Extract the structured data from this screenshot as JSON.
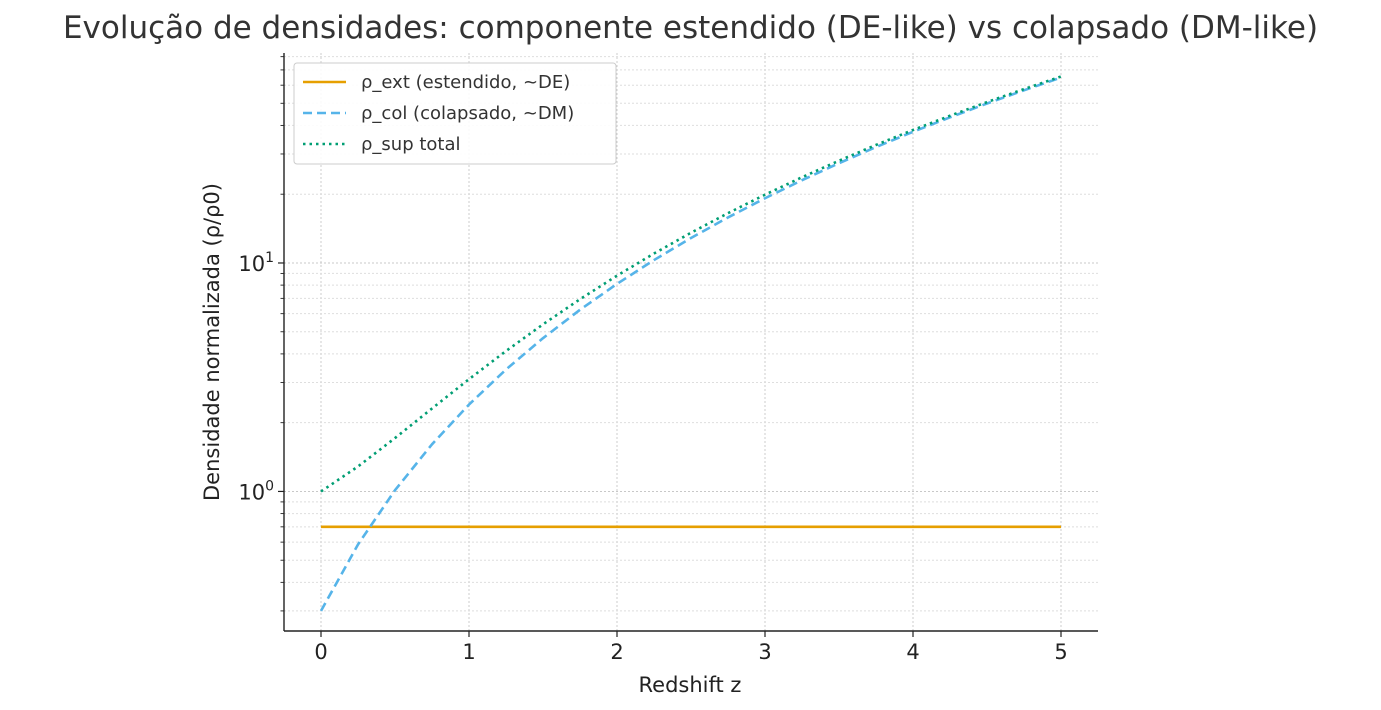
{
  "chart_data": {
    "type": "line",
    "title": "Evolução de densidades: componente estendido (DE-like) vs colapsado (DM-like)",
    "xlabel": "Redshift z",
    "ylabel": "Densidade normalizada (ρ/ρ0)",
    "xlim": [
      -0.25,
      5.25
    ],
    "ylim": [
      0.245,
      83
    ],
    "yscale": "log",
    "grid": true,
    "legend_position": "top-left",
    "x_ticks": [
      "0",
      "1",
      "2",
      "3",
      "4",
      "5"
    ],
    "y_ticks": [
      {
        "base": "10",
        "exp": "0",
        "value": 1
      },
      {
        "base": "10",
        "exp": "1",
        "value": 10
      }
    ],
    "x": [
      0,
      0.25,
      0.5,
      0.75,
      1,
      1.25,
      1.5,
      1.75,
      2,
      2.25,
      2.5,
      2.75,
      3,
      3.25,
      3.5,
      3.75,
      4,
      4.25,
      4.5,
      4.75,
      5
    ],
    "series": [
      {
        "name": "ρ_ext (estendido, ~DE)",
        "color": "#E69F00",
        "dash": "solid",
        "values": [
          0.7,
          0.7,
          0.7,
          0.7,
          0.7,
          0.7,
          0.7,
          0.7,
          0.7,
          0.7,
          0.7,
          0.7,
          0.7,
          0.7,
          0.7,
          0.7,
          0.7,
          0.7,
          0.7,
          0.7,
          0.7
        ]
      },
      {
        "name": "ρ_col (colapsado, ~DM)",
        "color": "#56B4E9",
        "dash": "dashed",
        "values": [
          0.3,
          0.586,
          1.0125,
          1.608,
          2.4,
          3.417,
          4.6875,
          6.239,
          8.1,
          10.298,
          12.863,
          15.822,
          19.2,
          23.027,
          27.338,
          32.16,
          37.5,
          43.398,
          49.894,
          56.991,
          64.8
        ]
      },
      {
        "name": "ρ_sup total",
        "color": "#009E73",
        "dash": "dotted",
        "values": [
          1.0,
          1.286,
          1.7125,
          2.308,
          3.1,
          4.117,
          5.3875,
          6.939,
          8.8,
          10.998,
          13.563,
          16.522,
          19.9,
          23.727,
          28.038,
          32.86,
          38.2,
          44.098,
          50.594,
          57.691,
          65.5
        ]
      }
    ]
  }
}
